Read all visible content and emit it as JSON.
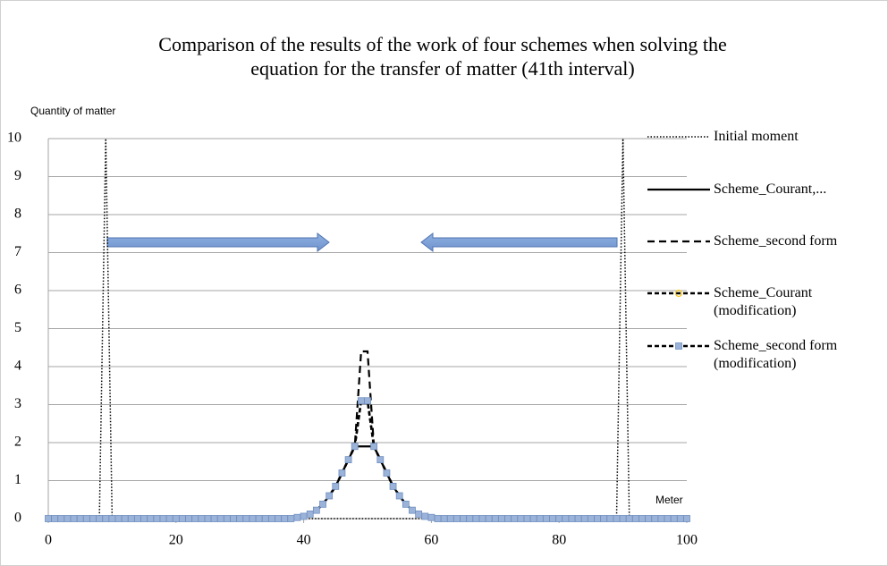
{
  "chart_data": {
    "type": "line",
    "title": "Comparison of the results of the work of four schemes when solving the equation for the transfer of matter (41th interval)",
    "y_label": "Quantity of matter",
    "x_label": "Meter",
    "x": [
      0,
      1,
      2,
      3,
      4,
      5,
      6,
      7,
      8,
      9,
      10,
      11,
      12,
      13,
      14,
      15,
      16,
      17,
      18,
      19,
      20,
      21,
      22,
      23,
      24,
      25,
      26,
      27,
      28,
      29,
      30,
      31,
      32,
      33,
      34,
      35,
      36,
      37,
      38,
      39,
      40,
      41,
      42,
      43,
      44,
      45,
      46,
      47,
      48,
      49,
      50,
      51,
      52,
      53,
      54,
      55,
      56,
      57,
      58,
      59,
      60,
      61,
      62,
      63,
      64,
      65,
      66,
      67,
      68,
      69,
      70,
      71,
      72,
      73,
      74,
      75,
      76,
      77,
      78,
      79,
      80,
      81,
      82,
      83,
      84,
      85,
      86,
      87,
      88,
      89,
      90,
      91,
      92,
      93,
      94,
      95,
      96,
      97,
      98,
      99,
      100
    ],
    "series": [
      {
        "name": "Initial moment",
        "color": "#000000",
        "line_style": "dotted",
        "marker": "none",
        "values": [
          0,
          0,
          0,
          0,
          0,
          0,
          0,
          0,
          0,
          10,
          0,
          0,
          0,
          0,
          0,
          0,
          0,
          0,
          0,
          0,
          0,
          0,
          0,
          0,
          0,
          0,
          0,
          0,
          0,
          0,
          0,
          0,
          0,
          0,
          0,
          0,
          0,
          0,
          0,
          0,
          0,
          0,
          0,
          0,
          0,
          0,
          0,
          0,
          0,
          0,
          0,
          0,
          0,
          0,
          0,
          0,
          0,
          0,
          0,
          0,
          0,
          0,
          0,
          0,
          0,
          0,
          0,
          0,
          0,
          0,
          0,
          0,
          0,
          0,
          0,
          0,
          0,
          0,
          0,
          0,
          0,
          0,
          0,
          0,
          0,
          0,
          0,
          0,
          0,
          0,
          10,
          0,
          0,
          0,
          0,
          0,
          0,
          0,
          0,
          0,
          0
        ]
      },
      {
        "name": "Scheme_Courant,...",
        "color": "#000000",
        "line_style": "solid",
        "marker": "none",
        "values": [
          0,
          0,
          0,
          0,
          0,
          0,
          0,
          0,
          0,
          0,
          0,
          0,
          0,
          0,
          0,
          0,
          0,
          0,
          0,
          0,
          0,
          0,
          0,
          0,
          0,
          0,
          0,
          0,
          0,
          0,
          0,
          0,
          0,
          0,
          0,
          0,
          0,
          0,
          0,
          0.03,
          0.06,
          0.12,
          0.22,
          0.38,
          0.6,
          0.85,
          1.2,
          1.55,
          1.9,
          1.9,
          1.9,
          1.9,
          1.55,
          1.2,
          0.85,
          0.6,
          0.38,
          0.22,
          0.12,
          0.06,
          0.03,
          0,
          0,
          0,
          0,
          0,
          0,
          0,
          0,
          0,
          0,
          0,
          0,
          0,
          0,
          0,
          0,
          0,
          0,
          0,
          0,
          0,
          0,
          0,
          0,
          0,
          0,
          0,
          0,
          0,
          0,
          0,
          0,
          0,
          0,
          0,
          0,
          0,
          0,
          0,
          0
        ]
      },
      {
        "name": "Scheme_second form",
        "color": "#000000",
        "line_style": "dashed",
        "marker": "none",
        "values": [
          0,
          0,
          0,
          0,
          0,
          0,
          0,
          0,
          0,
          0,
          0,
          0,
          0,
          0,
          0,
          0,
          0,
          0,
          0,
          0,
          0,
          0,
          0,
          0,
          0,
          0,
          0,
          0,
          0,
          0,
          0,
          0,
          0,
          0,
          0,
          0,
          0,
          0,
          0,
          0.03,
          0.06,
          0.12,
          0.22,
          0.38,
          0.6,
          0.85,
          1.2,
          1.55,
          1.9,
          4.4,
          4.4,
          1.9,
          1.55,
          1.2,
          0.85,
          0.6,
          0.38,
          0.22,
          0.12,
          0.06,
          0.03,
          0,
          0,
          0,
          0,
          0,
          0,
          0,
          0,
          0,
          0,
          0,
          0,
          0,
          0,
          0,
          0,
          0,
          0,
          0,
          0,
          0,
          0,
          0,
          0,
          0,
          0,
          0,
          0,
          0,
          0,
          0,
          0,
          0,
          0,
          0,
          0,
          0,
          0,
          0,
          0
        ]
      },
      {
        "name": "Scheme_Courant (modification)",
        "color": "#000000",
        "line_style": "dashdot",
        "marker": "circle",
        "marker_color": "#f5c518",
        "values": [
          0,
          0,
          0,
          0,
          0,
          0,
          0,
          0,
          0,
          0,
          0,
          0,
          0,
          0,
          0,
          0,
          0,
          0,
          0,
          0,
          0,
          0,
          0,
          0,
          0,
          0,
          0,
          0,
          0,
          0,
          0,
          0,
          0,
          0,
          0,
          0,
          0,
          0,
          0,
          0.03,
          0.06,
          0.12,
          0.22,
          0.38,
          0.6,
          0.85,
          1.2,
          1.55,
          1.9,
          3.1,
          3.1,
          1.9,
          1.55,
          1.2,
          0.85,
          0.6,
          0.38,
          0.22,
          0.12,
          0.06,
          0.03,
          0,
          0,
          0,
          0,
          0,
          0,
          0,
          0,
          0,
          0,
          0,
          0,
          0,
          0,
          0,
          0,
          0,
          0,
          0,
          0,
          0,
          0,
          0,
          0,
          0,
          0,
          0,
          0,
          0,
          0,
          0,
          0,
          0,
          0,
          0,
          0,
          0,
          0,
          0,
          0
        ]
      },
      {
        "name": "Scheme_second form (modification)",
        "color": "#000000",
        "line_style": "dashdot",
        "marker": "square",
        "marker_color": "#9bb3d9",
        "values": [
          0,
          0,
          0,
          0,
          0,
          0,
          0,
          0,
          0,
          0,
          0,
          0,
          0,
          0,
          0,
          0,
          0,
          0,
          0,
          0,
          0,
          0,
          0,
          0,
          0,
          0,
          0,
          0,
          0,
          0,
          0,
          0,
          0,
          0,
          0,
          0,
          0,
          0,
          0,
          0.03,
          0.06,
          0.12,
          0.22,
          0.38,
          0.6,
          0.85,
          1.2,
          1.55,
          1.9,
          3.1,
          3.1,
          1.9,
          1.55,
          1.2,
          0.85,
          0.6,
          0.38,
          0.22,
          0.12,
          0.06,
          0.03,
          0,
          0,
          0,
          0,
          0,
          0,
          0,
          0,
          0,
          0,
          0,
          0,
          0,
          0,
          0,
          0,
          0,
          0,
          0,
          0,
          0,
          0,
          0,
          0,
          0,
          0,
          0,
          0,
          0,
          0,
          0,
          0,
          0,
          0,
          0,
          0,
          0,
          0,
          0,
          0
        ]
      }
    ],
    "xlim": [
      0,
      100
    ],
    "xticks": [
      0,
      20,
      40,
      60,
      80,
      100
    ],
    "ylim": [
      0,
      10
    ],
    "yticks": [
      0,
      1,
      2,
      3,
      4,
      5,
      6,
      7,
      8,
      9,
      10
    ],
    "grid": true,
    "legend": "right"
  }
}
